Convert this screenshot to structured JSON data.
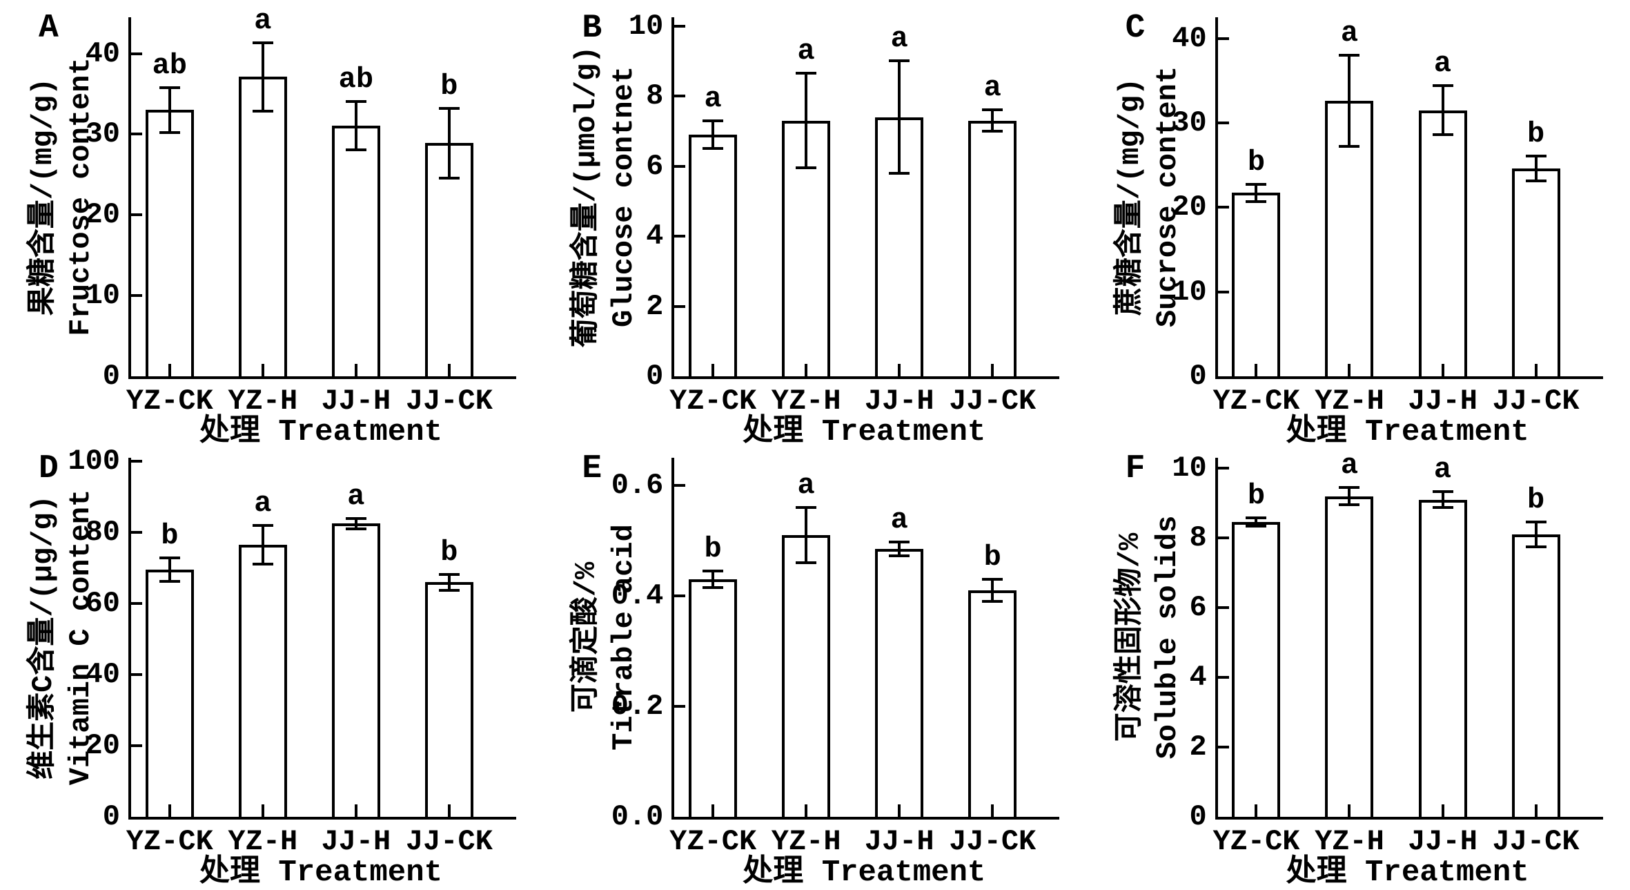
{
  "figure": {
    "background_color": "#ffffff",
    "ink_color": "#000000",
    "x_axis_title": "处理 Treatment",
    "categories": [
      "YZ-CK",
      "YZ-H",
      "JJ-H",
      "JJ-CK"
    ]
  },
  "chart_data": [
    {
      "type": "bar",
      "panel": "A",
      "ylabel_cn": "果糖含量/(mg/g)",
      "ylabel_en": "Fructose content",
      "xlabel": "处理 Treatment",
      "categories": [
        "YZ-CK",
        "YZ-H",
        "JJ-H",
        "JJ-CK"
      ],
      "values": [
        33.0,
        37.1,
        31.1,
        28.9
      ],
      "errors": [
        2.8,
        4.2,
        3.0,
        4.3
      ],
      "sig_letters": [
        "ab",
        "a",
        "ab",
        "b"
      ],
      "ylim": [
        0,
        44.5
      ],
      "ytick_values": [
        0,
        10,
        20,
        30,
        40
      ],
      "ytick_labels": [
        "0",
        "10",
        "20",
        "30",
        "40"
      ]
    },
    {
      "type": "bar",
      "panel": "B",
      "ylabel_cn": "葡萄糖含量/(μmol/g)",
      "ylabel_en": "Glucose contnet",
      "xlabel": "处理 Treatment",
      "categories": [
        "YZ-CK",
        "YZ-H",
        "JJ-H",
        "JJ-CK"
      ],
      "values": [
        6.9,
        7.3,
        7.4,
        7.3
      ],
      "errors": [
        0.4,
        1.35,
        1.6,
        0.3
      ],
      "sig_letters": [
        "a",
        "a",
        "a",
        "a"
      ],
      "ylim": [
        0,
        10.25
      ],
      "ytick_values": [
        0,
        2,
        4,
        6,
        8,
        10
      ],
      "ytick_labels": [
        "0",
        "2",
        "4",
        "6",
        "8",
        "10"
      ]
    },
    {
      "type": "bar",
      "panel": "C",
      "ylabel_cn": "蔗糖含量/(mg/g)",
      "ylabel_en": "Sucrose content",
      "xlabel": "处理 Treatment",
      "categories": [
        "YZ-CK",
        "YZ-H",
        "JJ-H",
        "JJ-CK"
      ],
      "values": [
        21.7,
        32.6,
        31.5,
        24.6
      ],
      "errors": [
        1.0,
        5.4,
        2.9,
        1.5
      ],
      "sig_letters": [
        "b",
        "a",
        "a",
        "b"
      ],
      "ylim": [
        0,
        42.5
      ],
      "ytick_values": [
        0,
        10,
        20,
        30,
        40
      ],
      "ytick_labels": [
        "0",
        "10",
        "20",
        "30",
        "40"
      ]
    },
    {
      "type": "bar",
      "panel": "D",
      "ylabel_cn": "维生素C含量/(μg/g)",
      "ylabel_en": "Vitamin C content",
      "xlabel": "处理 Treatment",
      "categories": [
        "YZ-CK",
        "YZ-H",
        "JJ-H",
        "JJ-CK"
      ],
      "values": [
        69.5,
        76.5,
        82.5,
        66.0
      ],
      "errors": [
        3.3,
        5.5,
        1.5,
        2.2
      ],
      "sig_letters": [
        "b",
        "a",
        "a",
        "b"
      ],
      "ylim": [
        0,
        101
      ],
      "ytick_values": [
        0,
        20,
        40,
        60,
        80,
        100
      ],
      "ytick_labels": [
        "0",
        "20",
        "40",
        "60",
        "80",
        "100"
      ]
    },
    {
      "type": "bar",
      "panel": "E",
      "ylabel_cn": "可滴定酸/%",
      "ylabel_en": "Titrable acid",
      "xlabel": "处理 Treatment",
      "categories": [
        "YZ-CK",
        "YZ-H",
        "JJ-H",
        "JJ-CK"
      ],
      "values": [
        0.43,
        0.51,
        0.485,
        0.41
      ],
      "errors": [
        0.015,
        0.05,
        0.012,
        0.02
      ],
      "sig_letters": [
        "b",
        "a",
        "a",
        "b"
      ],
      "ylim": [
        0,
        0.65
      ],
      "ytick_values": [
        0,
        0.2,
        0.4,
        0.6
      ],
      "ytick_labels": [
        "0.0",
        "0.2",
        "0.4",
        "0.6"
      ]
    },
    {
      "type": "bar",
      "panel": "F",
      "ylabel_cn": "可溶性固形物/%",
      "ylabel_en": "Soluble solids",
      "xlabel": "处理 Treatment",
      "categories": [
        "YZ-CK",
        "YZ-H",
        "JJ-H",
        "JJ-CK"
      ],
      "values": [
        8.45,
        9.2,
        9.1,
        8.1
      ],
      "errors": [
        0.12,
        0.25,
        0.22,
        0.35
      ],
      "sig_letters": [
        "b",
        "a",
        "a",
        "b"
      ],
      "ylim": [
        0,
        10.3
      ],
      "ytick_values": [
        0,
        2,
        4,
        6,
        8,
        10
      ],
      "ytick_labels": [
        "0",
        "2",
        "4",
        "6",
        "8",
        "10"
      ]
    }
  ]
}
